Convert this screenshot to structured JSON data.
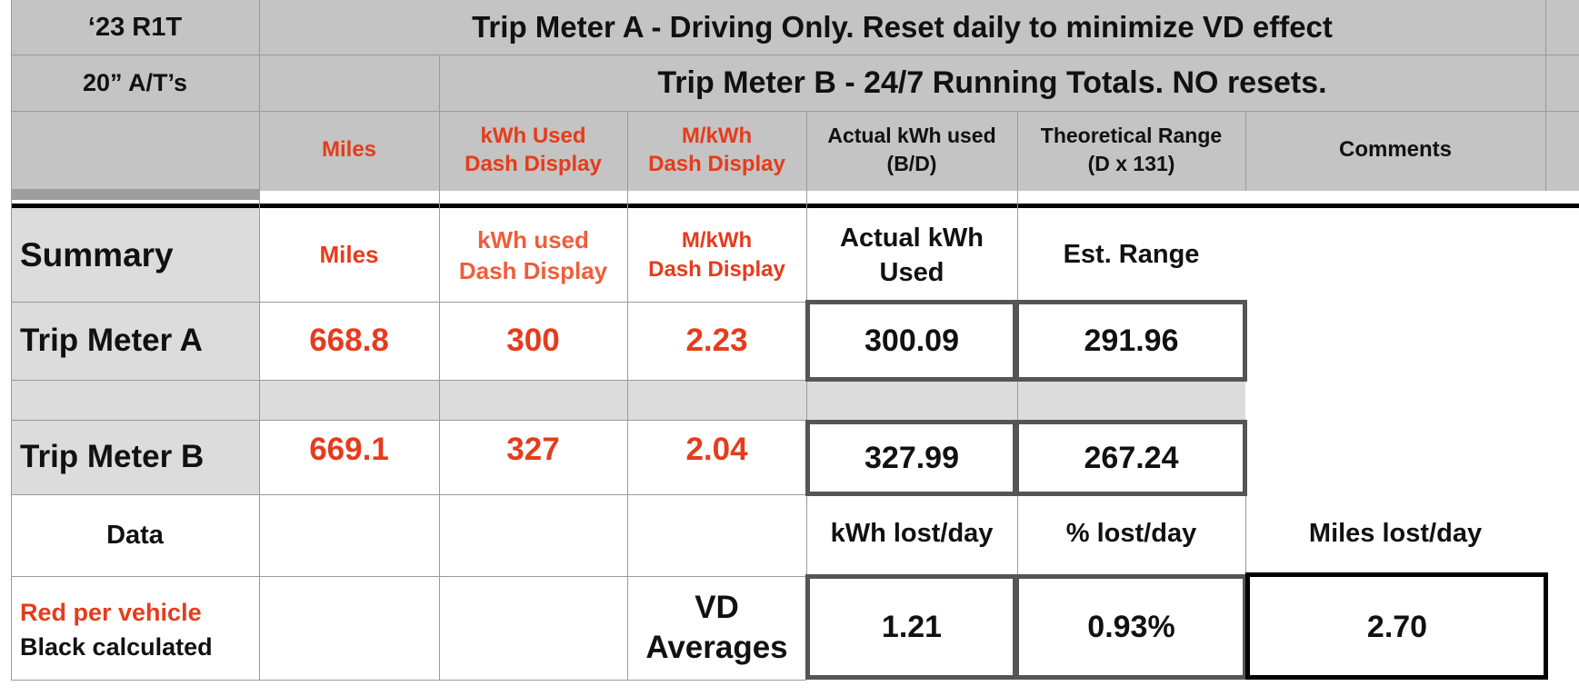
{
  "header": {
    "vehicle": "‘23 R1T",
    "tires": "20” A/T’s",
    "trip_a_title": "Trip Meter A - Driving Only.  Reset daily to minimize VD effect",
    "trip_b_title": "Trip Meter B - 24/7 Running Totals. NO resets.",
    "columns": {
      "miles": "Miles",
      "kwh_used_1": "kWh Used",
      "kwh_used_2": "Dash Display",
      "mkwh_1": "M/kWh",
      "mkwh_2": "Dash Display",
      "actual_1": "Actual kWh used",
      "actual_2": "(B/D)",
      "theo_1": "Theoretical Range",
      "theo_2": "(D x 131)",
      "comments": "Comments"
    }
  },
  "summary": {
    "label": "Summary",
    "miles": "Miles",
    "kwh_1": "kWh used",
    "kwh_2": "Dash Display",
    "mkwh_1": "M/kWh",
    "mkwh_2": "Dash Display",
    "actual_1": "Actual kWh",
    "actual_2": "Used",
    "range": "Est. Range"
  },
  "trip_a": {
    "label": "Trip Meter A",
    "miles": "668.8",
    "kwh": "300",
    "mkwh": "2.23",
    "actual": "300.09",
    "range": "291.96"
  },
  "trip_b": {
    "label": "Trip Meter B",
    "miles": "669.1",
    "kwh": "327",
    "mkwh": "2.04",
    "actual": "327.99",
    "range": "267.24"
  },
  "data_row": {
    "label": "Data",
    "kwh_lost": "kWh lost/day",
    "pct_lost": "% lost/day",
    "miles_lost": "Miles lost/day"
  },
  "vd_row": {
    "legend_red": "Red per vehicle",
    "legend_black": "Black calculated",
    "label_1": "VD",
    "label_2": "Averages",
    "kwh_lost": "1.21",
    "pct_lost": "0.93%",
    "miles_lost": "2.70"
  }
}
